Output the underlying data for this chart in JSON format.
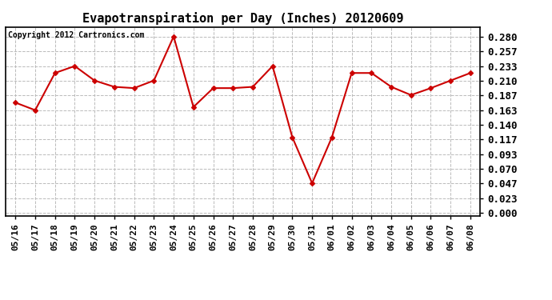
{
  "title": "Evapotranspiration per Day (Inches) 20120609",
  "copyright": "Copyright 2012 Cartronics.com",
  "dates": [
    "05/16",
    "05/17",
    "05/18",
    "05/19",
    "05/20",
    "05/21",
    "05/22",
    "05/23",
    "05/24",
    "05/25",
    "05/26",
    "05/27",
    "05/28",
    "05/29",
    "05/30",
    "05/31",
    "06/01",
    "06/02",
    "06/03",
    "06/04",
    "06/05",
    "06/06",
    "06/07",
    "06/08"
  ],
  "values": [
    0.175,
    0.163,
    0.222,
    0.233,
    0.21,
    0.2,
    0.198,
    0.21,
    0.28,
    0.168,
    0.198,
    0.198,
    0.2,
    0.233,
    0.12,
    0.047,
    0.12,
    0.222,
    0.222,
    0.2,
    0.187,
    0.198,
    0.21,
    0.222
  ],
  "line_color": "#cc0000",
  "marker": "D",
  "marker_size": 3,
  "bg_color": "#ffffff",
  "plot_bg_color": "#ffffff",
  "grid_color": "#bbbbbb",
  "yticks": [
    0.0,
    0.023,
    0.047,
    0.07,
    0.093,
    0.117,
    0.14,
    0.163,
    0.187,
    0.21,
    0.233,
    0.257,
    0.28
  ],
  "ylim": [
    -0.005,
    0.295
  ],
  "title_fontsize": 11,
  "copyright_fontsize": 7,
  "tick_fontsize": 8,
  "ytick_fontsize": 9,
  "border_color": "#000000"
}
